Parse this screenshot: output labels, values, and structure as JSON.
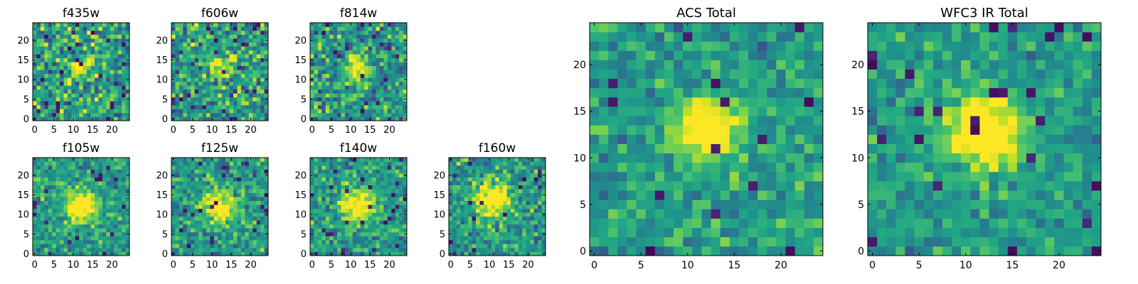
{
  "figure": {
    "colormap": "viridis"
  },
  "chart_data": [
    {
      "type": "heatmap",
      "title": "f435w",
      "grid": [
        25,
        25
      ],
      "xlim": [
        -0.5,
        24.5
      ],
      "ylim": [
        -0.5,
        24.5
      ],
      "xticks": [
        0,
        5,
        10,
        15,
        20
      ],
      "yticks": [
        0,
        5,
        10,
        15,
        20
      ],
      "source_x": 12,
      "source_y": 13,
      "peak": 0.45,
      "sigma": 2.0,
      "noise": 0.55,
      "seed": 11
    },
    {
      "type": "heatmap",
      "title": "f606w",
      "grid": [
        25,
        25
      ],
      "xlim": [
        -0.5,
        24.5
      ],
      "ylim": [
        -0.5,
        24.5
      ],
      "xticks": [
        0,
        5,
        10,
        15,
        20
      ],
      "yticks": [
        0,
        5,
        10,
        15,
        20
      ],
      "source_x": 12,
      "source_y": 13,
      "peak": 0.55,
      "sigma": 2.0,
      "noise": 0.55,
      "seed": 23
    },
    {
      "type": "heatmap",
      "title": "f814w",
      "grid": [
        25,
        25
      ],
      "xlim": [
        -0.5,
        24.5
      ],
      "ylim": [
        -0.5,
        24.5
      ],
      "xticks": [
        0,
        5,
        10,
        15,
        20
      ],
      "yticks": [
        0,
        5,
        10,
        15,
        20
      ],
      "source_x": 12,
      "source_y": 13,
      "peak": 0.65,
      "sigma": 2.0,
      "noise": 0.5,
      "seed": 37
    },
    {
      "type": "heatmap",
      "title": "f105w",
      "grid": [
        25,
        25
      ],
      "xlim": [
        -0.5,
        24.5
      ],
      "ylim": [
        -0.5,
        24.5
      ],
      "xticks": [
        0,
        5,
        10,
        15,
        20
      ],
      "yticks": [
        0,
        5,
        10,
        15,
        20
      ],
      "source_x": 12,
      "source_y": 12,
      "peak": 0.6,
      "sigma": 3.0,
      "noise": 0.35,
      "seed": 41
    },
    {
      "type": "heatmap",
      "title": "f125w",
      "grid": [
        25,
        25
      ],
      "xlim": [
        -0.5,
        24.5
      ],
      "ylim": [
        -0.5,
        24.5
      ],
      "xticks": [
        0,
        5,
        10,
        15,
        20
      ],
      "yticks": [
        0,
        5,
        10,
        15,
        20
      ],
      "source_x": 12,
      "source_y": 12,
      "peak": 0.55,
      "sigma": 3.0,
      "noise": 0.4,
      "seed": 53
    },
    {
      "type": "heatmap",
      "title": "f140w",
      "grid": [
        25,
        25
      ],
      "xlim": [
        -0.5,
        24.5
      ],
      "ylim": [
        -0.5,
        24.5
      ],
      "xticks": [
        0,
        5,
        10,
        15,
        20
      ],
      "yticks": [
        0,
        5,
        10,
        15,
        20
      ],
      "source_x": 12,
      "source_y": 12,
      "peak": 0.6,
      "sigma": 3.0,
      "noise": 0.38,
      "seed": 67
    },
    {
      "type": "heatmap",
      "title": "f160w",
      "grid": [
        25,
        25
      ],
      "xlim": [
        -0.5,
        24.5
      ],
      "ylim": [
        -0.5,
        24.5
      ],
      "xticks": [
        0,
        5,
        10,
        15,
        20
      ],
      "yticks": [
        0,
        5,
        10,
        15,
        20
      ],
      "source_x": 11,
      "source_y": 14,
      "peak": 0.7,
      "sigma": 3.0,
      "noise": 0.4,
      "seed": 79
    },
    {
      "type": "heatmap",
      "title": "ACS Total",
      "grid": [
        25,
        25
      ],
      "xlim": [
        -0.5,
        24.5
      ],
      "ylim": [
        -0.5,
        24.5
      ],
      "xticks": [
        0,
        5,
        10,
        15,
        20
      ],
      "yticks": [
        0,
        5,
        10,
        15,
        20
      ],
      "source_x": 12,
      "source_y": 13,
      "peak": 0.75,
      "sigma": 2.2,
      "noise": 0.32,
      "seed": 97
    },
    {
      "type": "heatmap",
      "title": "WFC3 IR Total",
      "grid": [
        25,
        25
      ],
      "xlim": [
        -0.5,
        24.5
      ],
      "ylim": [
        -0.5,
        24.5
      ],
      "xticks": [
        0,
        5,
        10,
        15,
        20
      ],
      "yticks": [
        0,
        5,
        10,
        15,
        20
      ],
      "source_x": 12,
      "source_y": 13,
      "peak": 0.8,
      "sigma": 2.6,
      "noise": 0.3,
      "seed": 113
    }
  ]
}
